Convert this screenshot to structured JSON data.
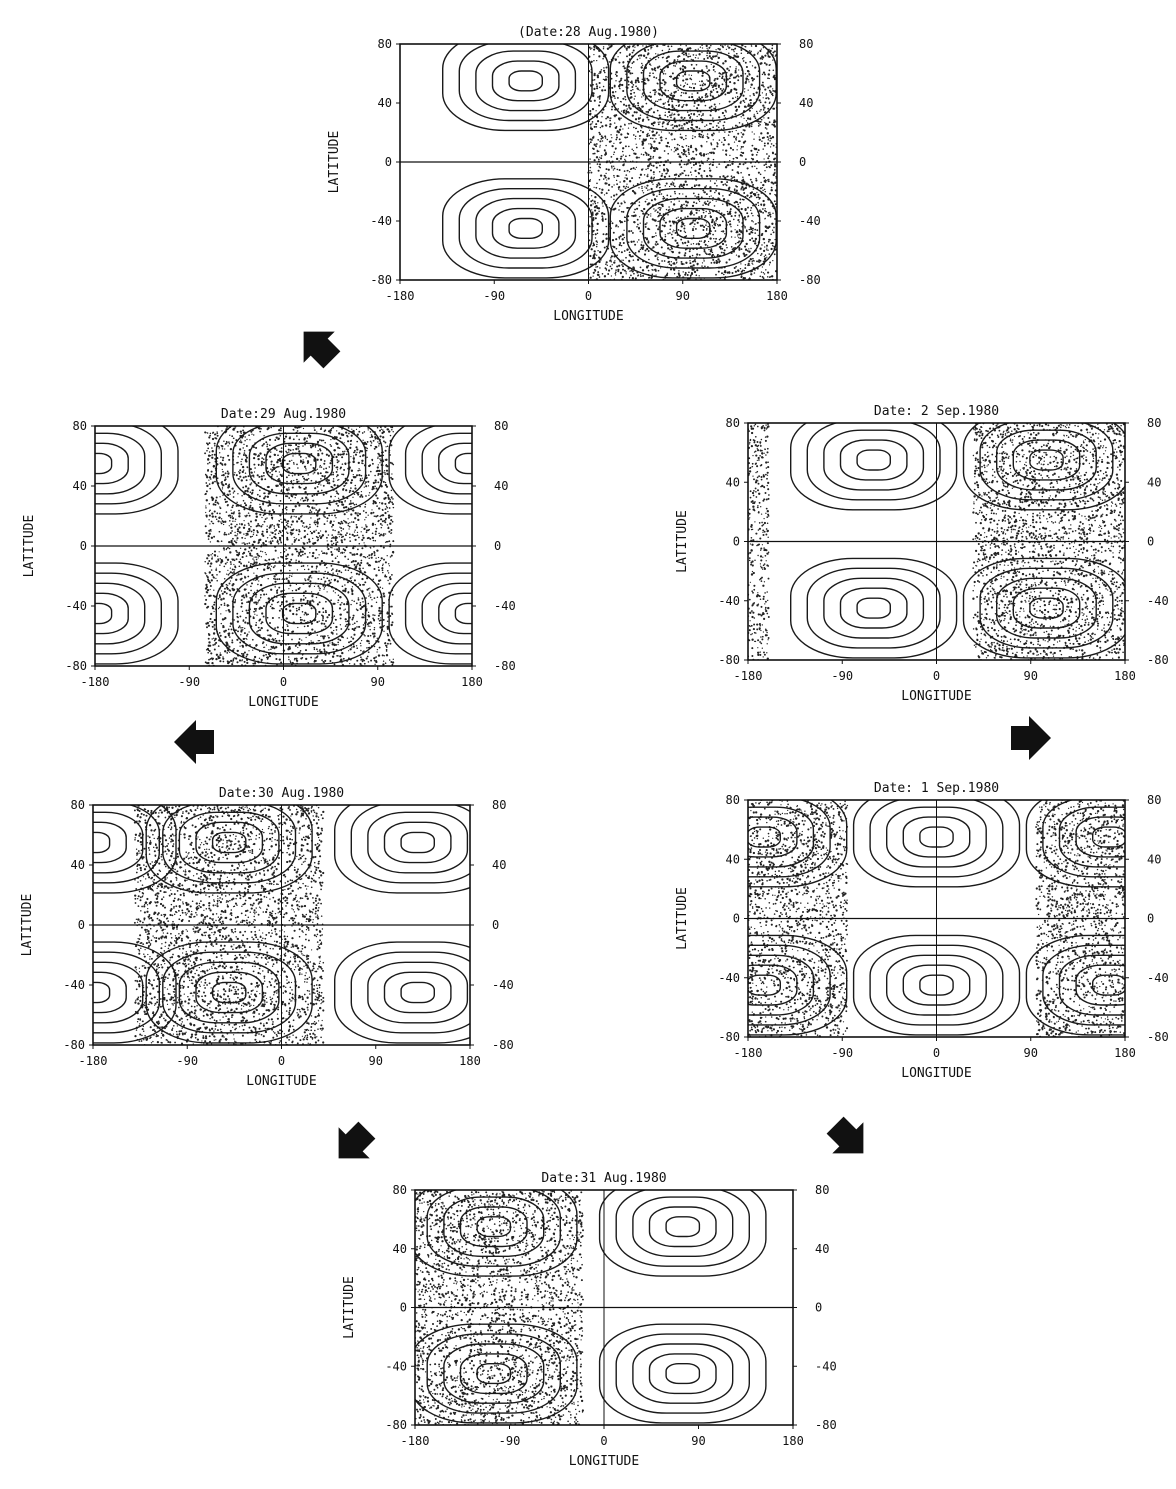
{
  "chart_data": [
    {
      "type": "contour",
      "title": "(Date:28 Aug.1980)",
      "xlabel": "LONGITUDE",
      "ylabel": "LATITUDE",
      "xlim": [
        -180,
        180
      ],
      "ylim": [
        -80,
        80
      ],
      "xticks": [
        "-180",
        "-90",
        "0",
        "90",
        "180"
      ],
      "yticks": [
        "80",
        "40",
        "0",
        "-40",
        "-80"
      ],
      "yticks_right": [
        "80",
        "40",
        "0",
        "-40",
        "-80"
      ],
      "stippled_longitude_ranges": [
        [
          0,
          180
        ]
      ],
      "open_cell_centers": [
        {
          "lon": -60,
          "lat": 55
        },
        {
          "lon": -60,
          "lat": -45
        }
      ],
      "stippled_cell_centers": [
        {
          "lon": 100,
          "lat": 55
        },
        {
          "lon": 100,
          "lat": -45
        }
      ]
    },
    {
      "type": "contour",
      "title": "Date:29 Aug.1980",
      "xlabel": "LONGITUDE",
      "ylabel": "LATITUDE",
      "xlim": [
        -180,
        180
      ],
      "ylim": [
        -80,
        80
      ],
      "xticks": [
        "-180",
        "-90",
        "0",
        "90",
        "180"
      ],
      "yticks": [
        "80",
        "40",
        "0",
        "-40",
        "-80"
      ],
      "yticks_right": [
        "80",
        "40",
        "0",
        "-40",
        "-80"
      ],
      "stippled_longitude_ranges": [
        [
          -75,
          105
        ]
      ],
      "open_cell_centers": [
        {
          "lon": -180,
          "lat": 55
        },
        {
          "lon": -180,
          "lat": -45
        },
        {
          "lon": 180,
          "lat": 55
        },
        {
          "lon": 180,
          "lat": -45
        }
      ],
      "stippled_cell_centers": [
        {
          "lon": 15,
          "lat": 55
        },
        {
          "lon": 15,
          "lat": -45
        }
      ]
    },
    {
      "type": "contour",
      "title": "Date:30 Aug.1980",
      "xlabel": "LONGITUDE",
      "ylabel": "LATITUDE",
      "xlim": [
        -180,
        180
      ],
      "ylim": [
        -80,
        80
      ],
      "xticks": [
        "-180",
        "-90",
        "0",
        "90",
        "180"
      ],
      "yticks": [
        "80",
        "40",
        "0",
        "-40",
        "-80"
      ],
      "yticks_right": [
        "80",
        "40",
        "0",
        "-40",
        "-80"
      ],
      "stippled_longitude_ranges": [
        [
          -140,
          40
        ]
      ],
      "open_cell_centers": [
        {
          "lon": 130,
          "lat": 55
        },
        {
          "lon": 130,
          "lat": -45
        },
        {
          "lon": -180,
          "lat": 55
        },
        {
          "lon": -180,
          "lat": -45
        }
      ],
      "stippled_cell_centers": [
        {
          "lon": -50,
          "lat": 55
        },
        {
          "lon": -50,
          "lat": -45
        }
      ]
    },
    {
      "type": "contour",
      "title": "Date:31 Aug.1980",
      "xlabel": "LONGITUDE",
      "ylabel": "LATITUDE",
      "xlim": [
        -180,
        180
      ],
      "ylim": [
        -80,
        80
      ],
      "xticks": [
        "-180",
        "-90",
        "0",
        "90",
        "180"
      ],
      "yticks": [
        "80",
        "40",
        "0",
        "-40",
        "-80"
      ],
      "yticks_right": [
        "80",
        "40",
        "0",
        "-40",
        "-80"
      ],
      "stippled_longitude_ranges": [
        [
          -180,
          -20
        ]
      ],
      "open_cell_centers": [
        {
          "lon": 75,
          "lat": 55
        },
        {
          "lon": 75,
          "lat": -45
        }
      ],
      "stippled_cell_centers": [
        {
          "lon": -105,
          "lat": 55
        },
        {
          "lon": -105,
          "lat": -45
        }
      ]
    },
    {
      "type": "contour",
      "title": "Date: 1 Sep.1980",
      "xlabel": "LONGITUDE",
      "ylabel": "LATITUDE",
      "xlim": [
        -180,
        180
      ],
      "ylim": [
        -80,
        80
      ],
      "xticks": [
        "-180",
        "-90",
        "0",
        "90",
        "180"
      ],
      "yticks": [
        "80",
        "40",
        "0",
        "-40",
        "-80"
      ],
      "yticks_right": [
        "80",
        "40",
        "0",
        "-40",
        "-80"
      ],
      "stippled_longitude_ranges": [
        [
          -180,
          -85
        ],
        [
          95,
          180
        ]
      ],
      "open_cell_centers": [
        {
          "lon": 0,
          "lat": 55
        },
        {
          "lon": 0,
          "lat": -45
        }
      ],
      "stippled_cell_centers": [
        {
          "lon": -165,
          "lat": 55
        },
        {
          "lon": -165,
          "lat": -45
        },
        {
          "lon": 165,
          "lat": 55
        },
        {
          "lon": 165,
          "lat": -45
        }
      ]
    },
    {
      "type": "contour",
      "title": "Date: 2 Sep.1980",
      "xlabel": "LONGITUDE",
      "ylabel": "LATITUDE",
      "xlim": [
        -180,
        180
      ],
      "ylim": [
        -80,
        80
      ],
      "xticks": [
        "-180",
        "-90",
        "0",
        "90",
        "180"
      ],
      "yticks": [
        "80",
        "40",
        "0",
        "-40",
        "-80"
      ],
      "yticks_right": [
        "80",
        "40",
        "0",
        "-40",
        "-80"
      ],
      "stippled_longitude_ranges": [
        [
          -180,
          -160
        ],
        [
          35,
          180
        ]
      ],
      "open_cell_centers": [
        {
          "lon": -60,
          "lat": 55
        },
        {
          "lon": -60,
          "lat": -45
        }
      ],
      "stippled_cell_centers": [
        {
          "lon": 105,
          "lat": 55
        },
        {
          "lon": 105,
          "lat": -45
        }
      ]
    }
  ]
}
